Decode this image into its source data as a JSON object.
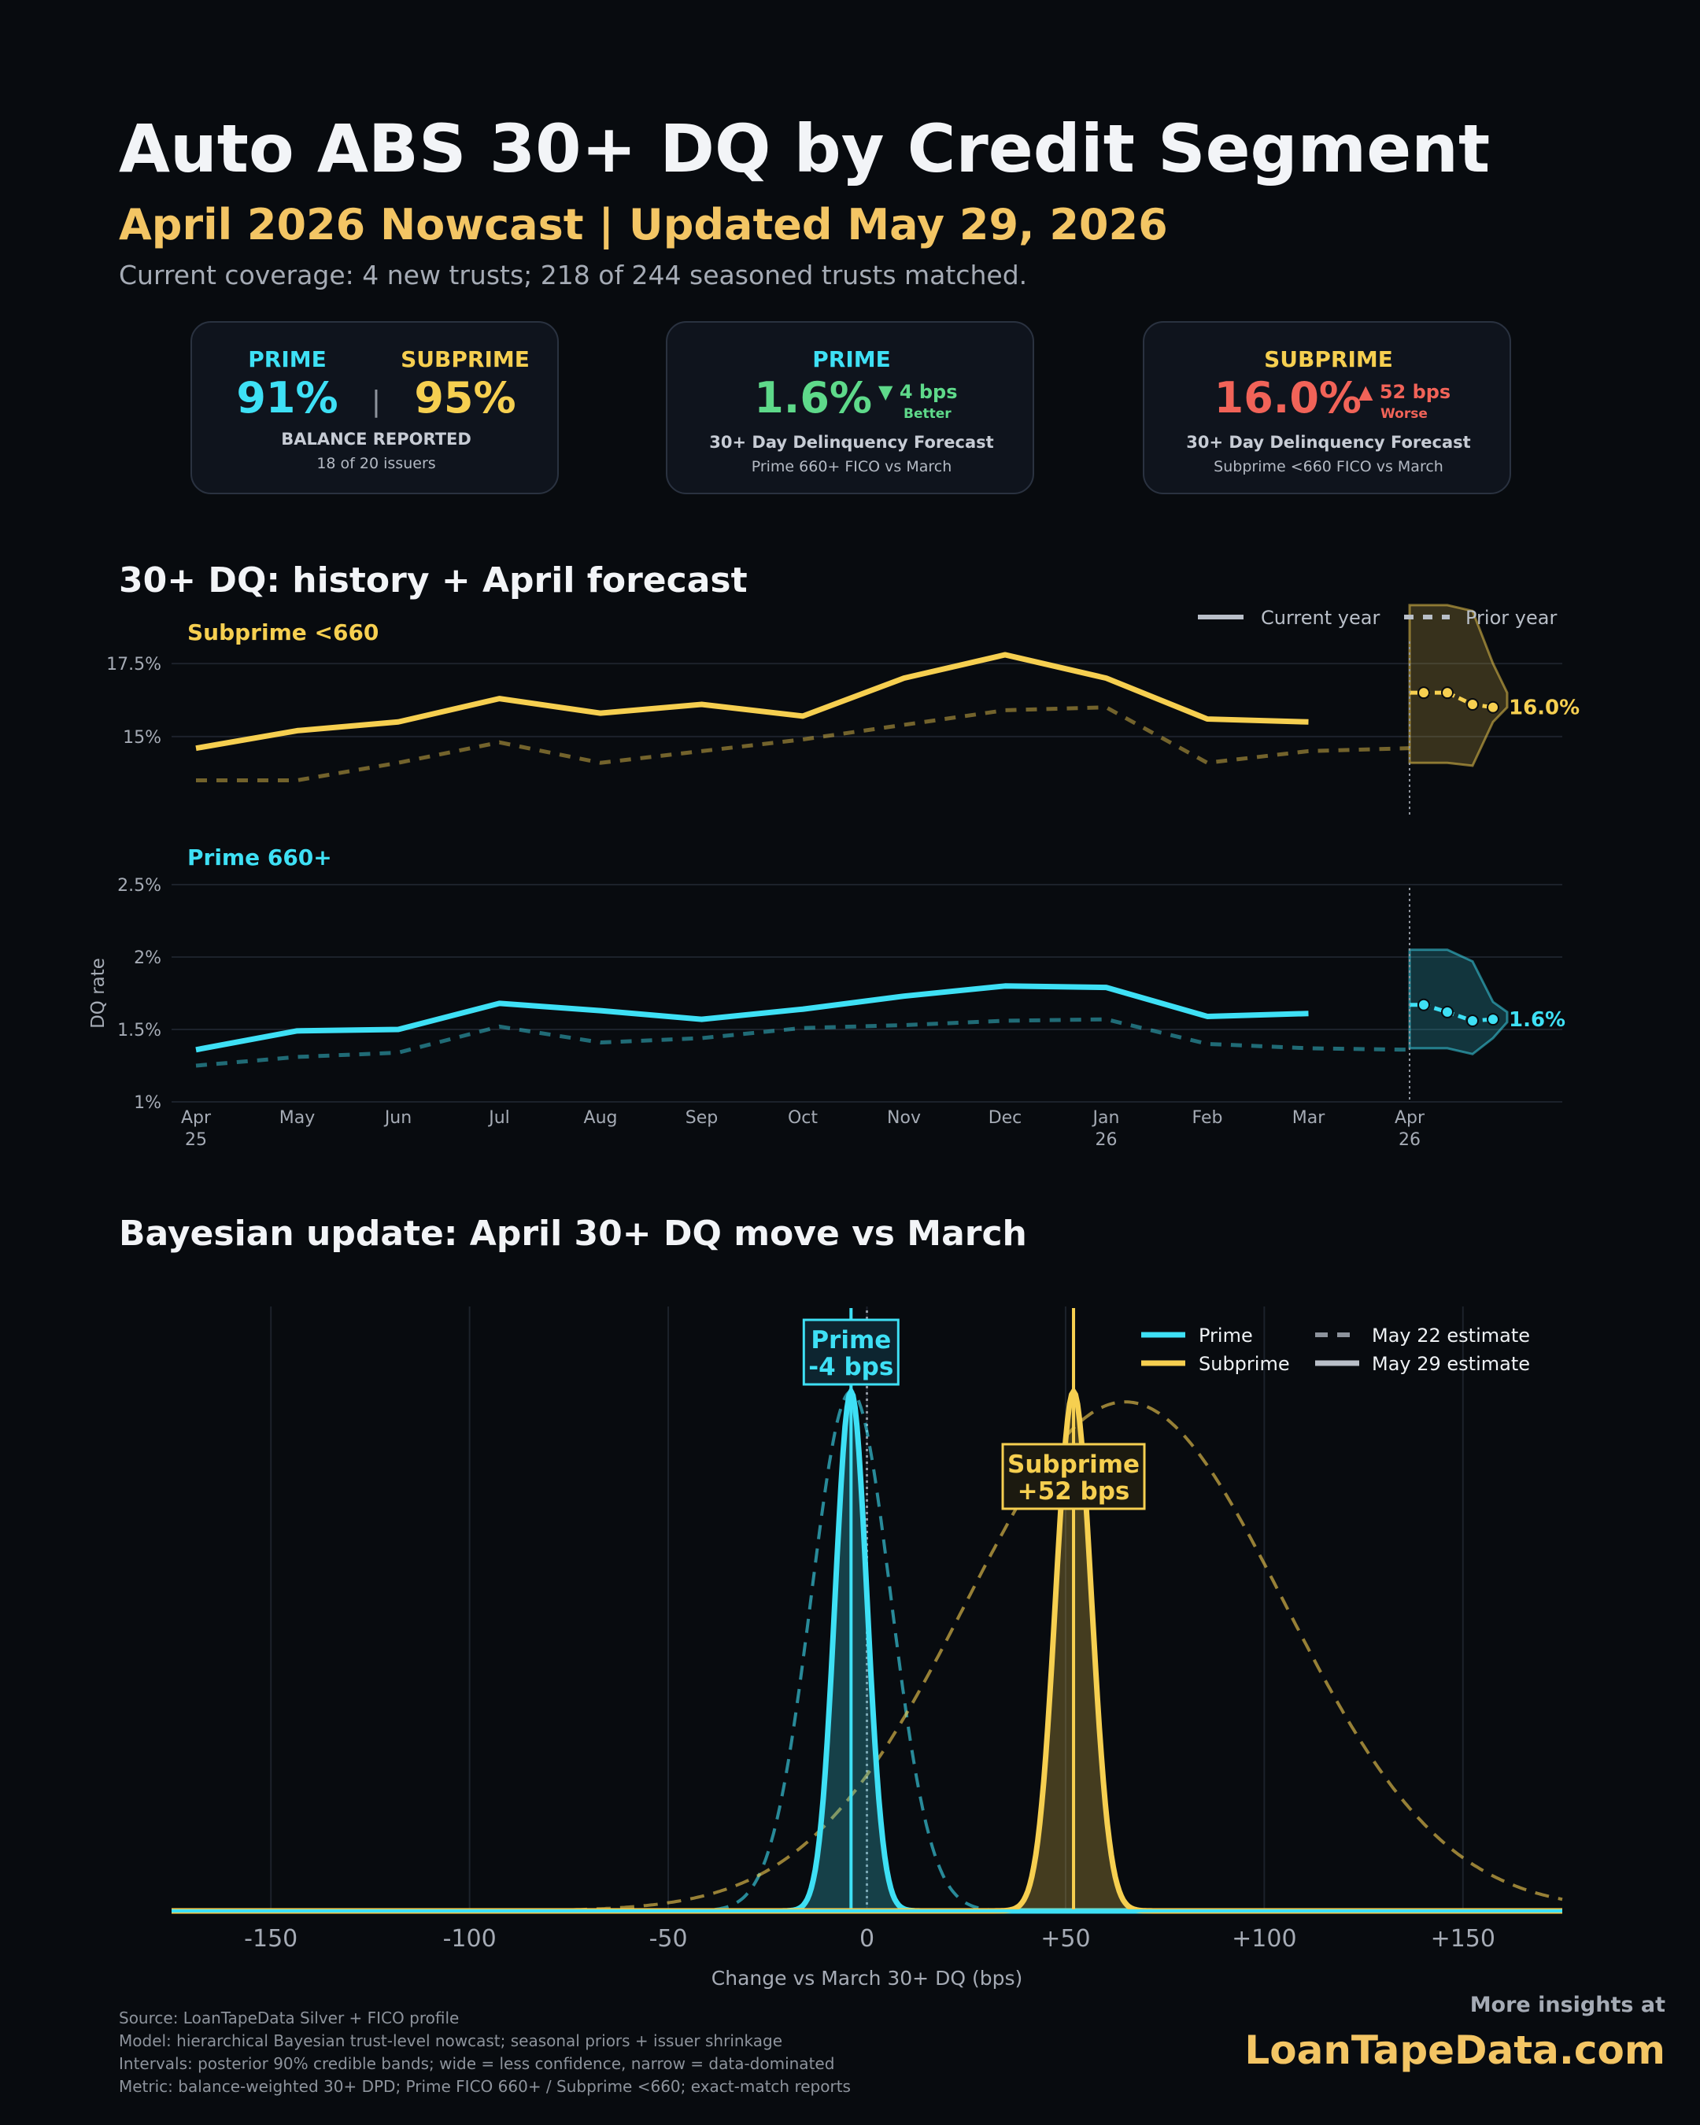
{
  "header": {
    "title": "Auto ABS 30+ DQ by Credit Segment",
    "subtitle": "April 2026 Nowcast | Updated May 29, 2026",
    "coverage": "Current coverage: 4 new trusts; 218 of 244 seasoned trusts matched."
  },
  "kpis": {
    "balance": {
      "prime_label": "PRIME",
      "prime_value": "91%",
      "separator": "|",
      "subprime_label": "SUBPRIME",
      "subprime_value": "95%",
      "caption": "BALANCE REPORTED",
      "sub": "18 of 20 issuers"
    },
    "prime": {
      "label": "PRIME",
      "value": "1.6%",
      "delta": "▼ 4 bps",
      "delta_note": "Better",
      "caption": "30+ Day Delinquency Forecast",
      "sub": "Prime 660+ FICO vs March"
    },
    "subprime": {
      "label": "SUBPRIME",
      "value": "16.0%",
      "delta": "▲ 52 bps",
      "delta_note": "Worse",
      "caption": "30+ Day Delinquency Forecast",
      "sub": "Subprime <660 FICO vs March"
    }
  },
  "sections": {
    "history_title": "30+ DQ: history + April forecast",
    "bayes_title": "Bayesian update: April 30+ DQ move vs March"
  },
  "colors": {
    "prime": "#3ee0f5",
    "subprime": "#f6cf50",
    "better": "#5ed98a",
    "worse": "#f16358",
    "background": "#080b0f",
    "accent": "#f3c564"
  },
  "chart_data": [
    {
      "type": "line",
      "panel_label": "Subprime <660",
      "x": [
        "Apr\n25",
        "May",
        "Jun",
        "Jul",
        "Aug",
        "Sep",
        "Oct",
        "Nov",
        "Dec",
        "Jan\n26",
        "Feb",
        "Mar",
        "Apr\n26"
      ],
      "legend": [
        "Current year",
        "Prior year"
      ],
      "legend_position": "top-right",
      "yticks": [
        "15%",
        "17.5%"
      ],
      "ylim": [
        13.0,
        18.5
      ],
      "series": [
        {
          "name": "Current year",
          "values": [
            14.6,
            15.2,
            15.5,
            16.3,
            15.8,
            16.1,
            15.7,
            17.0,
            17.8,
            17.0,
            15.6,
            15.5,
            null
          ]
        },
        {
          "name": "Prior year",
          "values": [
            13.5,
            13.5,
            14.1,
            14.8,
            14.1,
            14.5,
            14.9,
            15.4,
            15.9,
            16.0,
            14.1,
            14.5,
            14.6
          ]
        }
      ],
      "forecast": {
        "points": [
          16.5,
          16.5,
          16.1,
          16.0
        ],
        "band_upper": [
          19.5,
          19.5,
          19.3,
          17.5,
          16.5
        ],
        "band_lower": [
          14.1,
          14.1,
          14.0,
          15.5,
          16.0
        ],
        "label": "16.0%"
      },
      "grid": true
    },
    {
      "type": "line",
      "panel_label": "Prime 660+",
      "x": [
        "Apr\n25",
        "May",
        "Jun",
        "Jul",
        "Aug",
        "Sep",
        "Oct",
        "Nov",
        "Dec",
        "Jan\n26",
        "Feb",
        "Mar",
        "Apr\n26"
      ],
      "ylabel": "DQ rate",
      "yticks": [
        "1%",
        "1.5%",
        "2%",
        "2.5%"
      ],
      "ylim": [
        1.0,
        2.5
      ],
      "series": [
        {
          "name": "Current year",
          "values": [
            1.36,
            1.49,
            1.5,
            1.68,
            1.63,
            1.57,
            1.64,
            1.73,
            1.8,
            1.79,
            1.59,
            1.61,
            null
          ]
        },
        {
          "name": "Prior year",
          "values": [
            1.25,
            1.31,
            1.34,
            1.52,
            1.41,
            1.44,
            1.51,
            1.53,
            1.56,
            1.57,
            1.4,
            1.37,
            1.36
          ]
        }
      ],
      "forecast": {
        "points": [
          1.67,
          1.62,
          1.56,
          1.57
        ],
        "band_upper": [
          2.05,
          2.05,
          1.97,
          1.69,
          1.62
        ],
        "band_lower": [
          1.37,
          1.37,
          1.33,
          1.44,
          1.55
        ],
        "label": "1.6%"
      },
      "grid": true
    },
    {
      "type": "area",
      "xlabel": "Change vs March 30+ DQ (bps)",
      "xlim": [
        -175,
        175
      ],
      "xticks": [
        "-150",
        "-100",
        "-50",
        "0",
        "+50",
        "+100",
        "+150"
      ],
      "legend": [
        "Prime",
        "Subprime",
        "May 22 estimate",
        "May 29 estimate"
      ],
      "legend_position": "top-right",
      "series": [
        {
          "name": "Prime",
          "estimate": "May 29 estimate",
          "mean": -4,
          "sd": 4,
          "peak": 1.0
        },
        {
          "name": "Subprime",
          "estimate": "May 29 estimate",
          "mean": 52,
          "sd": 4.5,
          "peak": 1.0
        },
        {
          "name": "Prime",
          "estimate": "May 22 estimate",
          "mean": -4,
          "sd": 10,
          "peak": 1.0
        },
        {
          "name": "Subprime",
          "estimate": "May 22 estimate",
          "mean": 65,
          "sd": 40,
          "peak": 0.98
        }
      ],
      "annotations": [
        {
          "label": "Prime\n-4 bps",
          "x": -4
        },
        {
          "label": "Subprime\n+52 bps",
          "x": 52
        }
      ],
      "grid": true
    }
  ],
  "footer": {
    "lines": [
      "Source: LoanTapeData Silver + FICO profile",
      "Model: hierarchical Bayesian trust-level nowcast; seasonal priors + issuer shrinkage",
      "Intervals: posterior 90% credible bands; wide = less confidence, narrow = data-dominated",
      "Metric: balance-weighted 30+ DPD; Prime FICO 660+ / Subprime <660; exact-match reports"
    ],
    "brand_prefix": "More insights at",
    "brand": "LoanTapeData.com"
  }
}
